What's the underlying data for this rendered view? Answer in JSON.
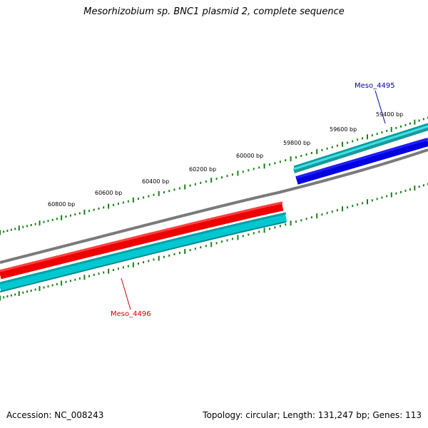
{
  "title": "Mesorhizobium sp. BNC1 plasmid 2, complete sequence",
  "colors": {
    "backbone": "#808080",
    "tick": "#1a7f1a",
    "gene_red": "#ff0000",
    "gene_blue": "#0000e0",
    "gene_cyan": "#00c0c8",
    "gene_teal": "#00a0a0",
    "label_red": "#d00000",
    "label_blue": "#0000b0"
  },
  "ticks": {
    "labels": [
      "59400 bp",
      "59600 bp",
      "59800 bp",
      "60000 bp",
      "60200 bp",
      "60400 bp",
      "60600 bp",
      "60800 bp"
    ]
  },
  "genes": {
    "upper_label": "Meso_4495",
    "lower_label": "Meso_4496"
  },
  "footer": {
    "accession": "Accession: NC_008243",
    "summary": "Topology: circular; Length: 131,247 bp; Genes: 113"
  }
}
